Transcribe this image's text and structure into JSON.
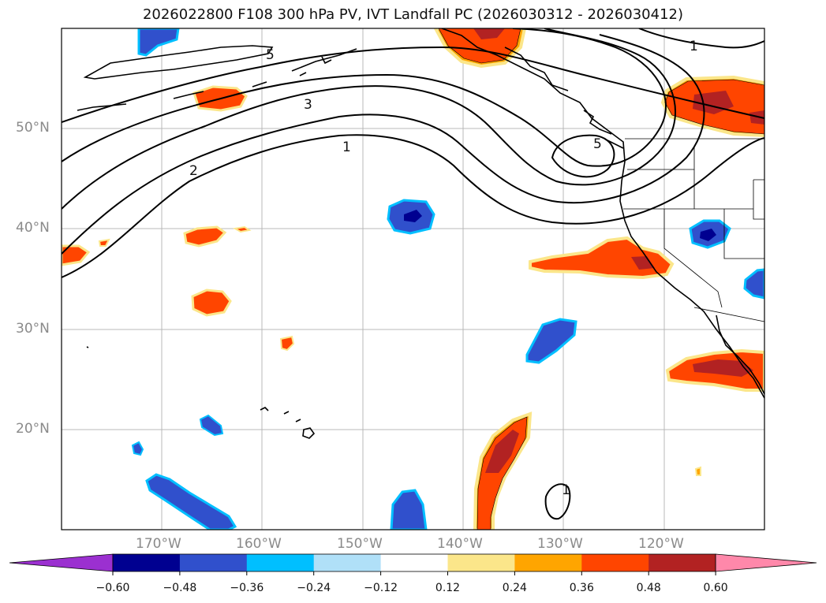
{
  "title": "2026022800 F108 300 hPa PV, IVT Landfall PC (2026030312 - 2026030412)",
  "lat_labels": [
    "50°N",
    "40°N",
    "30°N",
    "20°N"
  ],
  "lon_labels": [
    "170°W",
    "160°W",
    "150°W",
    "140°W",
    "130°W",
    "120°W"
  ],
  "contour_labels": [
    "5",
    "3",
    "2",
    "1",
    "5",
    "1",
    "1"
  ],
  "colorbar": {
    "ticks": [
      "−0.60",
      "−0.48",
      "−0.36",
      "−0.24",
      "−0.12",
      "0.12",
      "0.24",
      "0.36",
      "0.48",
      "0.60"
    ],
    "colors": [
      "#9b30d0",
      "#000090",
      "#3050cc",
      "#00bfff",
      "#b0e0f8",
      "#ffffff",
      "#fbe68a",
      "#ffa500",
      "#ff4500",
      "#b22222",
      "#ff88aa"
    ]
  }
}
